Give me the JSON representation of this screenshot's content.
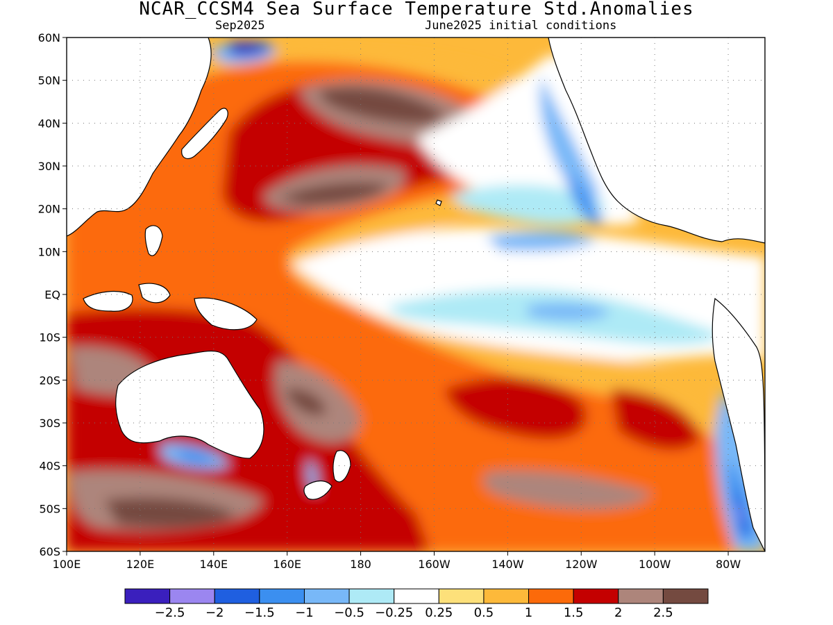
{
  "title": "NCAR_CCSM4 Sea Surface Temperature Std.Anomalies",
  "subtitle_left": "Sep2025",
  "subtitle_right": "June2025 initial conditions",
  "map": {
    "lon_range": [
      100,
      290
    ],
    "lat_range": [
      -60,
      60
    ],
    "lat_ticks": [
      {
        "lat": 60,
        "label": "60N"
      },
      {
        "lat": 50,
        "label": "50N"
      },
      {
        "lat": 40,
        "label": "40N"
      },
      {
        "lat": 30,
        "label": "30N"
      },
      {
        "lat": 20,
        "label": "20N"
      },
      {
        "lat": 10,
        "label": "10N"
      },
      {
        "lat": 0,
        "label": "EQ"
      },
      {
        "lat": -10,
        "label": "10S"
      },
      {
        "lat": -20,
        "label": "20S"
      },
      {
        "lat": -30,
        "label": "30S"
      },
      {
        "lat": -40,
        "label": "40S"
      },
      {
        "lat": -50,
        "label": "50S"
      },
      {
        "lat": -60,
        "label": "60S"
      }
    ],
    "lon_ticks": [
      {
        "lon": 100,
        "label": "100E"
      },
      {
        "lon": 120,
        "label": "120E"
      },
      {
        "lon": 140,
        "label": "140E"
      },
      {
        "lon": 160,
        "label": "160E"
      },
      {
        "lon": 180,
        "label": "180"
      },
      {
        "lon": 200,
        "label": "160W"
      },
      {
        "lon": 220,
        "label": "140W"
      },
      {
        "lon": 240,
        "label": "120W"
      },
      {
        "lon": 260,
        "label": "100W"
      },
      {
        "lon": 280,
        "label": "80W"
      }
    ],
    "colors_by_level": {
      "L-2.5": "#3a1fbd",
      "L-2": "#9b86f0",
      "L-1.5": "#1f5fe0",
      "L-1": "#3b8ff0",
      "L-0.5": "#78b8f8",
      "L-0.25": "#aeeaf6",
      "L0": "#ffffff",
      "L0.25": "#fde07a",
      "L0.5": "#fdb93a",
      "L1": "#fc6a0a",
      "L1.5": "#c40000",
      "L2": "#ad857b",
      "L2.5": "#744a40"
    }
  },
  "colorbar": {
    "colors": [
      "#3a1fbd",
      "#9b86f0",
      "#1f5fe0",
      "#3b8ff0",
      "#78b8f8",
      "#aeeaf6",
      "#ffffff",
      "#fde07a",
      "#fdb93a",
      "#fc6a0a",
      "#c40000",
      "#ad857b",
      "#744a40"
    ],
    "labels": [
      "−2.5",
      "−2",
      "−1.5",
      "−1",
      "−0.5",
      "−0.25",
      "0.25",
      "0.5",
      "1",
      "1.5",
      "2",
      "2.5"
    ]
  }
}
